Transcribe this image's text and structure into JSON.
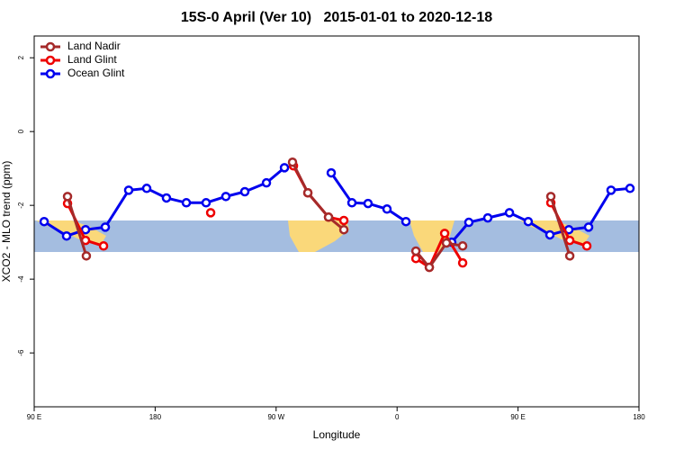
{
  "chart_data": {
    "type": "line",
    "title": "15S-0 April (Ver 10)   2015-01-01 to 2020-12-18",
    "xlabel": "Longitude",
    "ylabel": "XCO2 - MLO trend (ppm)",
    "xlim": [
      90,
      540
    ],
    "xticks": [
      {
        "value": 90,
        "label": "90 E"
      },
      180,
      {
        "value": 270,
        "label": "90 W"
      },
      {
        "value": 360,
        "label": "0"
      },
      {
        "value": 450,
        "label": "90 E"
      },
      {
        "value": 540,
        "label": "180"
      }
    ],
    "ylim": [
      -7.46,
      2.59
    ],
    "yticks": [
      2,
      0,
      -2,
      -4,
      -6
    ],
    "legend": "top-left",
    "series": [
      {
        "name": "Land Nadir",
        "color": "#a52a2a",
        "x": [
          114.8,
          128.8,
          null,
          282.2,
          293.6,
          309.0,
          320.4,
          null,
          374.0,
          384.0,
          396.7,
          408.8,
          null,
          474.4,
          488.5
        ],
        "values": [
          -1.76,
          -3.37,
          null,
          -0.83,
          -1.66,
          -2.32,
          -2.66,
          null,
          -3.24,
          -3.68,
          -3.02,
          -3.1,
          null,
          -1.76,
          -3.37
        ]
      },
      {
        "name": "Land Glint",
        "color": "#ee0000",
        "x": [
          114.8,
          128.2,
          141.6,
          null,
          221.3,
          null,
          282.9,
          293.6,
          309.0,
          320.4,
          null,
          374.0,
          384.0,
          395.4,
          408.8,
          null,
          474.4,
          488.5,
          501.2
        ],
        "values": [
          -1.95,
          -2.95,
          -3.1,
          null,
          -2.2,
          null,
          -0.93,
          -1.66,
          -2.32,
          -2.41,
          null,
          -3.44,
          -3.68,
          -2.76,
          -3.56,
          null,
          -1.93,
          -2.95,
          -3.1
        ]
      },
      {
        "name": "Ocean Glint",
        "color": "#0000ee",
        "x": [
          97.4,
          114.1,
          128.2,
          142.9,
          160.3,
          173.7,
          188.4,
          203.2,
          217.9,
          232.6,
          246.7,
          262.8,
          276.2,
          null,
          311.0,
          326.4,
          338.4,
          352.5,
          366.6,
          null,
          400.7,
          413.4,
          427.5,
          443.6,
          457.6,
          473.7,
          487.8,
          502.5,
          519.2,
          533.3
        ],
        "values": [
          -2.44,
          -2.83,
          -2.66,
          -2.59,
          -1.59,
          -1.54,
          -1.8,
          -1.93,
          -1.93,
          -1.76,
          -1.63,
          -1.39,
          -0.98,
          null,
          -1.12,
          -1.93,
          -1.95,
          -2.1,
          -2.44,
          null,
          -3.0,
          -2.46,
          -2.34,
          -2.2,
          -2.44,
          -2.8,
          -2.66,
          -2.59,
          -1.59,
          -1.54
        ]
      }
    ]
  }
}
